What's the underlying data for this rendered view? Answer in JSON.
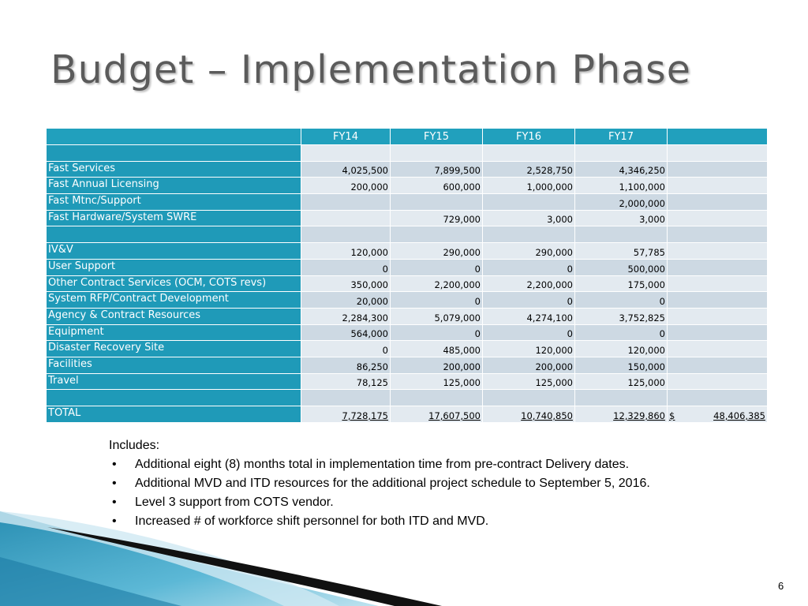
{
  "title": "Budget – Implementation Phase",
  "table": {
    "headers": [
      "",
      "FY14",
      "FY15",
      "FY16",
      "FY17",
      ""
    ],
    "rows": [
      {
        "label": "",
        "values": [
          "",
          "",
          "",
          "",
          ""
        ]
      },
      {
        "label": "Fast Services",
        "values": [
          "4,025,500",
          "7,899,500",
          "2,528,750",
          "4,346,250",
          ""
        ]
      },
      {
        "label": "Fast Annual Licensing",
        "values": [
          "200,000",
          "600,000",
          "1,000,000",
          "1,100,000",
          ""
        ]
      },
      {
        "label": "Fast Mtnc/Support",
        "values": [
          "",
          "",
          "",
          "2,000,000",
          ""
        ]
      },
      {
        "label": "Fast Hardware/System SWRE",
        "values": [
          "",
          "729,000",
          "3,000",
          "3,000",
          ""
        ]
      },
      {
        "label": "",
        "values": [
          "",
          "",
          "",
          "",
          ""
        ]
      },
      {
        "label": "IV&V",
        "values": [
          "120,000",
          "290,000",
          "290,000",
          "57,785",
          ""
        ]
      },
      {
        "label": "User Support",
        "values": [
          "0",
          "0",
          "0",
          "500,000",
          ""
        ]
      },
      {
        "label": "Other Contract Services (OCM, COTS revs)",
        "values": [
          "350,000",
          "2,200,000",
          "2,200,000",
          "175,000",
          ""
        ]
      },
      {
        "label": "System RFP/Contract Development",
        "values": [
          "20,000",
          "0",
          "0",
          "0",
          ""
        ]
      },
      {
        "label": "Agency & Contract Resources",
        "values": [
          "2,284,300",
          "5,079,000",
          "4,274,100",
          "3,752,825",
          ""
        ]
      },
      {
        "label": "Equipment",
        "values": [
          "564,000",
          "0",
          "0",
          "0",
          ""
        ]
      },
      {
        "label": "Disaster Recovery Site",
        "values": [
          "0",
          "485,000",
          "120,000",
          "120,000",
          ""
        ]
      },
      {
        "label": "Facilities",
        "values": [
          "86,250",
          "200,000",
          "200,000",
          "150,000",
          ""
        ]
      },
      {
        "label": "Travel",
        "values": [
          "78,125",
          "125,000",
          "125,000",
          "125,000",
          ""
        ]
      },
      {
        "label": "",
        "values": [
          "",
          "",
          "",
          "",
          ""
        ]
      }
    ],
    "total": {
      "label": "TOTAL",
      "values": [
        "7,728,175",
        "17,607,500",
        "10,740,850",
        "12,329,860"
      ],
      "grand_currency": "$",
      "grand_total": "48,406,385"
    }
  },
  "notes": {
    "heading": "Includes:",
    "bullet_symbol": "•",
    "items": [
      "Additional eight (8) months total in implementation time from pre-contract Delivery dates.",
      "Additional MVD and ITD resources for the additional project schedule to September 5, 2016.",
      "Level 3 support from COTS vendor.",
      "Increased # of workforce shift personnel for both ITD and MVD."
    ]
  },
  "page_number": "6",
  "colors": {
    "header_bg": "#21a0bd",
    "label_bg": "#1f9ab8",
    "row_light": "#e3eaf0",
    "row_dark": "#cdd9e3",
    "title_text": "#5b5b5b"
  }
}
